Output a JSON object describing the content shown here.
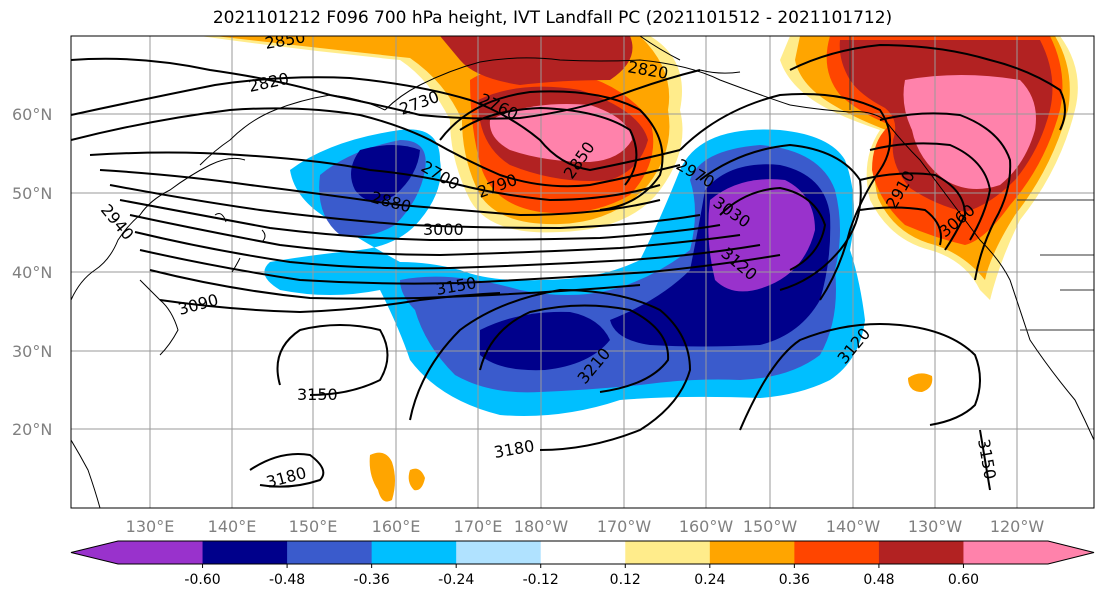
{
  "title": "2021101212 F096 700 hPa height, IVT Landfall PC (2021101512 - 2021101712)",
  "map": {
    "lat_ticks": [
      "60°N",
      "50°N",
      "40°N",
      "30°N",
      "20°N"
    ],
    "lon_ticks": [
      "130°E",
      "140°E",
      "150°E",
      "160°E",
      "170°E",
      "180°W",
      "170°W",
      "160°W",
      "150°W",
      "140°W",
      "130°W",
      "120°W"
    ],
    "contour_labels": [
      "2850",
      "2820",
      "2730",
      "2760",
      "2820",
      "2700",
      "2790",
      "2850",
      "2970",
      "2880",
      "3000",
      "3030",
      "2910",
      "3060",
      "2940",
      "3120",
      "3150",
      "3090",
      "3210",
      "3120",
      "3150",
      "3180",
      "3180",
      "3150"
    ]
  },
  "colorbar": {
    "colors": [
      "#9932CC",
      "#00008B",
      "#3A5BCC",
      "#00BFFF",
      "#B0E2FF",
      "#FFFFFF",
      "#FFEC8B",
      "#FFA500",
      "#FF4500",
      "#B22222",
      "#FF82AB"
    ],
    "tick_labels": [
      "-0.60",
      "-0.48",
      "-0.36",
      "-0.24",
      "-0.12",
      "0.12",
      "0.24",
      "0.36",
      "0.48",
      "0.60"
    ]
  }
}
